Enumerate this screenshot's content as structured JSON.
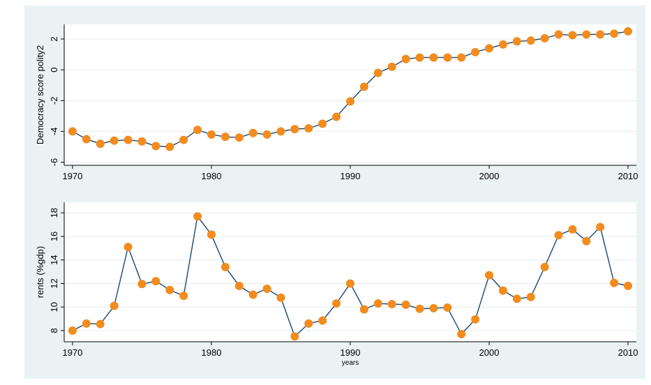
{
  "chart_data": [
    {
      "type": "line",
      "ylabel": "Democracy score polity2",
      "x": [
        1970,
        1971,
        1972,
        1973,
        1974,
        1975,
        1976,
        1977,
        1978,
        1979,
        1980,
        1981,
        1982,
        1983,
        1984,
        1985,
        1986,
        1987,
        1988,
        1989,
        1990,
        1991,
        1992,
        1993,
        1994,
        1995,
        1996,
        1997,
        1998,
        1999,
        2000,
        2001,
        2002,
        2003,
        2004,
        2005,
        2006,
        2007,
        2008,
        2009,
        2010
      ],
      "values": [
        -4.0,
        -4.5,
        -4.8,
        -4.6,
        -4.55,
        -4.65,
        -4.95,
        -5.0,
        -4.55,
        -3.9,
        -4.2,
        -4.35,
        -4.4,
        -4.1,
        -4.2,
        -4.0,
        -3.85,
        -3.8,
        -3.5,
        -3.05,
        -2.05,
        -1.1,
        -0.2,
        0.2,
        0.7,
        0.8,
        0.8,
        0.8,
        0.8,
        1.15,
        1.4,
        1.65,
        1.85,
        1.9,
        2.05,
        2.3,
        2.25,
        2.3,
        2.3,
        2.35,
        2.5
      ],
      "color": "#1a476f",
      "marker_color": "#f28c1e",
      "xlim": [
        1969.4,
        2010.6
      ],
      "ylim": [
        -6.2,
        2.95
      ],
      "xticks": [
        1970,
        1980,
        1990,
        2000,
        2010
      ],
      "yticks": [
        -6,
        -4,
        -2,
        0,
        2
      ],
      "grid": true
    },
    {
      "type": "line",
      "ylabel": "rents (%gdp)",
      "xlabel": "years",
      "x": [
        1970,
        1971,
        1972,
        1973,
        1974,
        1975,
        1976,
        1977,
        1978,
        1979,
        1980,
        1981,
        1982,
        1983,
        1984,
        1985,
        1986,
        1987,
        1988,
        1989,
        1990,
        1991,
        1992,
        1993,
        1994,
        1995,
        1996,
        1997,
        1998,
        1999,
        2000,
        2001,
        2002,
        2003,
        2004,
        2005,
        2006,
        2007,
        2008,
        2009,
        2010
      ],
      "values": [
        8.0,
        8.6,
        8.55,
        10.1,
        15.1,
        11.95,
        12.2,
        11.45,
        10.95,
        17.7,
        16.15,
        13.4,
        11.8,
        11.05,
        11.55,
        10.8,
        7.5,
        8.6,
        8.85,
        10.3,
        12.0,
        9.8,
        10.3,
        10.25,
        10.2,
        9.85,
        9.9,
        9.95,
        7.7,
        8.95,
        12.7,
        11.4,
        10.7,
        10.85,
        13.4,
        16.1,
        16.6,
        15.6,
        16.8,
        12.05,
        11.8
      ],
      "color": "#1a476f",
      "marker_color": "#f28c1e",
      "xlim": [
        1969.4,
        2010.6
      ],
      "ylim": [
        7.05,
        18.9
      ],
      "xticks": [
        1970,
        1980,
        1990,
        2000,
        2010
      ],
      "yticks": [
        8,
        10,
        12,
        14,
        16,
        18
      ],
      "grid": true
    }
  ]
}
